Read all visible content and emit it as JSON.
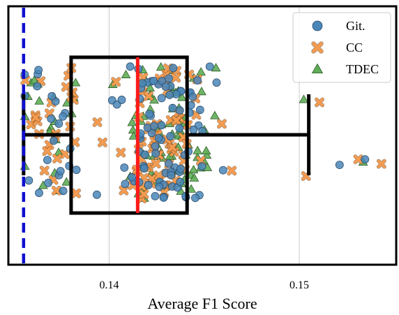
{
  "chart_data": {
    "type": "scatter",
    "xlabel": "Average F1 Score",
    "ylabel": "",
    "xlim": [
      0.1347,
      0.1551
    ],
    "x_ticks": [
      0.14,
      0.15
    ],
    "x_tick_labels": [
      "0.14",
      "0.15"
    ],
    "y_hidden": true,
    "grid": {
      "x": true,
      "y": false
    },
    "legend_position": "top-right",
    "legend": [
      {
        "name": "Git.",
        "marker": "circle",
        "color": "#4a86b8"
      },
      {
        "name": "CC",
        "marker": "x",
        "color": "#f59b4f"
      },
      {
        "name": "TDEC",
        "marker": "triangle",
        "color": "#5fad56"
      }
    ],
    "boxplot": {
      "whisker_low": 0.1355,
      "q1": 0.138,
      "median": 0.1415,
      "q3": 0.1441,
      "whisker_high": 0.1505
    },
    "reference_line": {
      "x": 0.1355,
      "style": "dashed",
      "color": "#1010d0"
    },
    "median_color": "#ff1a1a",
    "box_color": "#000000",
    "notes": "Jittered individual points for three series; y position is random jitter with no data meaning."
  }
}
